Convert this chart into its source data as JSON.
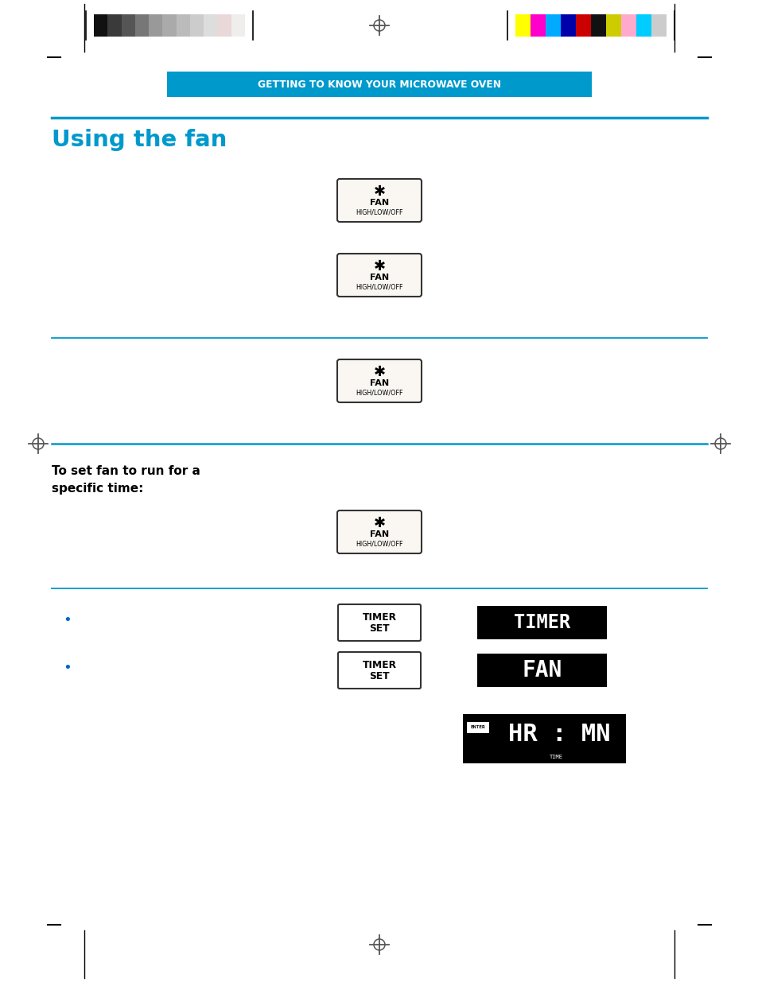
{
  "page_bg": "#ffffff",
  "header_bg": "#0099cc",
  "header_text_display": "GETTING TO KNOW YOUR MICROWAVE OVEN",
  "title": "Using the fan",
  "title_color": "#0099cc",
  "section_line_color": "#0099cc",
  "subtitle_line1": "To set fan to run for a",
  "subtitle_line2": "specific time:",
  "fan_label1": "FAN",
  "fan_label2": "HIGH/LOW/OFF",
  "timer_label1": "TIMER",
  "timer_label2": "SET",
  "display_timer": "TIMER",
  "display_fan": "FAN",
  "display_hrmin": "HR : MN",
  "display_enter": "ENTER",
  "display_time": "TIME",
  "colors_bar_left": [
    "#111111",
    "#3a3a3a",
    "#555555",
    "#777777",
    "#999999",
    "#aaaaaa",
    "#bbbbbb",
    "#cccccc",
    "#dddddd",
    "#e8d8d8",
    "#f0eded"
  ],
  "colors_bar_right": [
    "#ffff00",
    "#ff00cc",
    "#00aaff",
    "#0000aa",
    "#cc0000",
    "#111111",
    "#cccc00",
    "#ffaacc",
    "#00ccff",
    "#cccccc"
  ],
  "bullet_color": "#0066cc",
  "black": "#000000",
  "white": "#ffffff",
  "gray_border": "#333333"
}
